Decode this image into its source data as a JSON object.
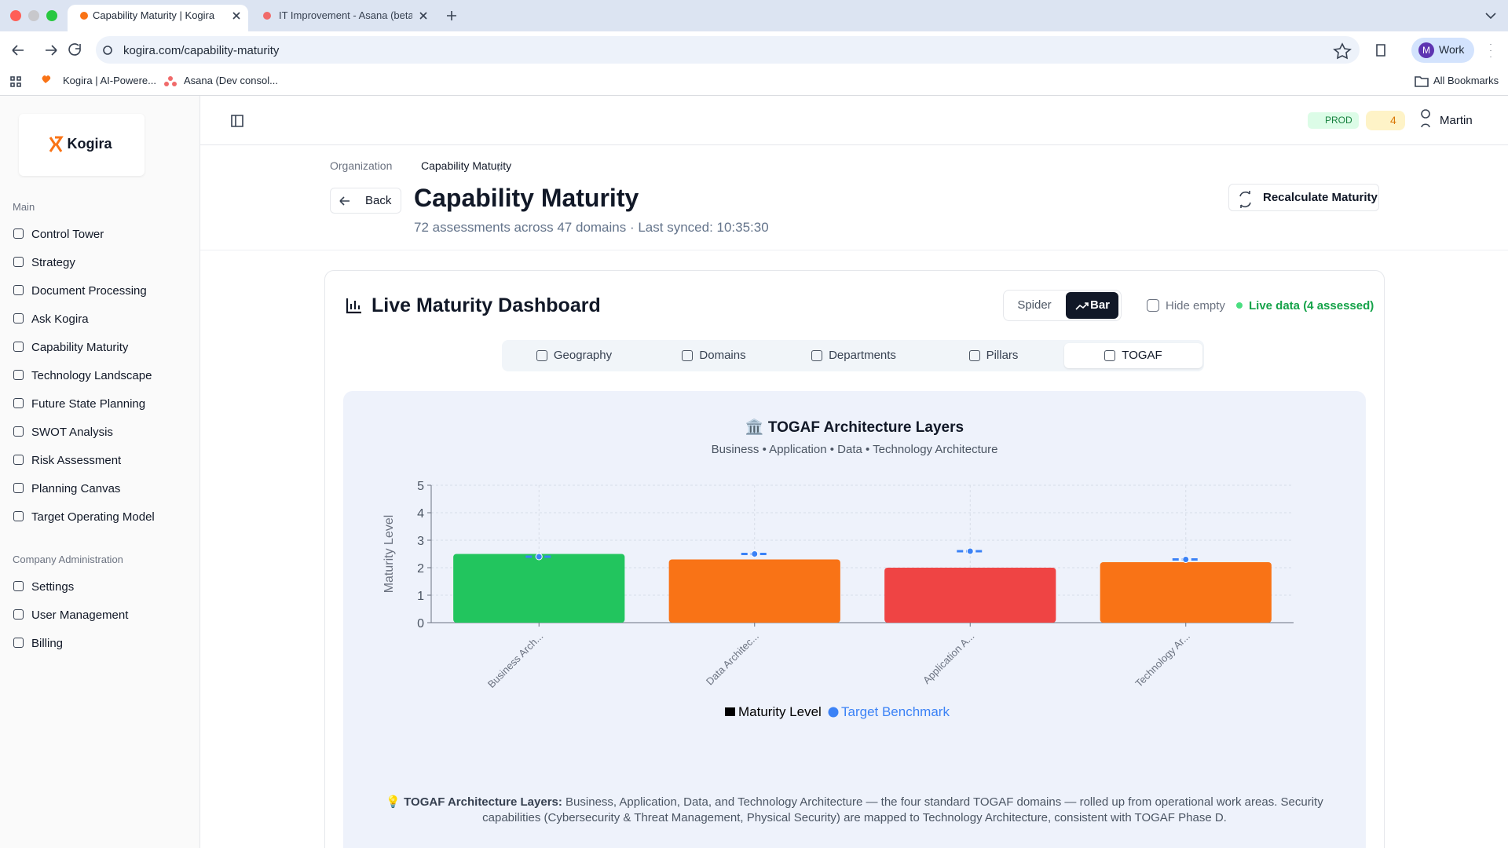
{
  "browser": {
    "tabs": [
      "Capability Maturity | Kogira",
      "IT Improvement - Asana (beta"
    ],
    "url": "kogira.com/capability-maturity",
    "bookmarks": [
      "Kogira | AI-Powere...",
      "Asana (Dev consol..."
    ],
    "all_bookmarks": "All Bookmarks",
    "profile_initial": "M",
    "profile": "Work"
  },
  "sidebar": {
    "logo": "Kogira",
    "sections": [
      {
        "title": "Main",
        "items": [
          "Control Tower",
          "Strategy",
          "Document Processing",
          "Ask Kogira",
          "Capability Maturity",
          "Technology Landscape",
          "Future State Planning",
          "SWOT Analysis",
          "Risk Assessment",
          "Planning Canvas",
          "Target Operating Model"
        ]
      },
      {
        "title": "Company Administration",
        "items": [
          "Settings",
          "User Management",
          "Billing"
        ]
      }
    ]
  },
  "topbar": {
    "env": "PROD",
    "alerts": 4,
    "user": "Martin"
  },
  "header": {
    "breadcrumb": [
      "Organization",
      "Capability Maturity"
    ],
    "back": "Back",
    "title": "Capability Maturity",
    "subtitle": "72 assessments across 47 domains · Last synced: 10:35:30",
    "action": "Recalculate Maturity"
  },
  "dashboard": {
    "title": "Live Maturity Dashboard",
    "views": [
      "Spider",
      "Bar"
    ],
    "hide_empty": "Hide empty",
    "live": "Live data (4 assessed)",
    "tabs": [
      "Geography",
      "Domains",
      "Departments",
      "Pillars",
      "TOGAF"
    ]
  },
  "chart_data": {
    "type": "bar",
    "title": "🏛️ TOGAF Architecture Layers",
    "subtitle": "Business • Application • Data • Technology Architecture",
    "y_label": "Maturity Level",
    "categories": [
      "Business Arch...",
      "Data Architec...",
      "Application A...",
      "Technology Ar..."
    ],
    "series": [
      {
        "name": "Maturity Level",
        "type": "bar",
        "colors": [
          "#22c55e",
          "#f97316",
          "#ef4444",
          "#f97316"
        ],
        "values": [
          2.5,
          2.3,
          2.0,
          2.2
        ]
      },
      {
        "name": "Target Benchmark",
        "type": "scatter",
        "color": "#3b82f6",
        "values": [
          2.4,
          2.5,
          2.6,
          2.3
        ]
      }
    ],
    "ylim": [
      0,
      5
    ],
    "yticks": [
      0,
      1,
      2,
      3,
      4,
      5
    ],
    "grid": true
  },
  "note": {
    "icon": "💡",
    "label": "TOGAF Architecture Layers:",
    "text": "Business, Application, Data, and Technology Architecture — the four standard TOGAF domains — rolled up from operational work areas. Security capabilities (Cybersecurity & Threat Management, Physical Security) are mapped to Technology Architecture, consistent with TOGAF Phase D."
  }
}
